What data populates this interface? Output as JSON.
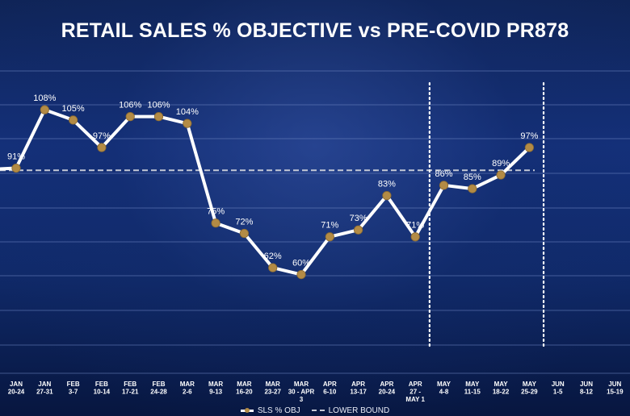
{
  "chart_data": {
    "type": "line",
    "title": "RETAIL SALES % OBJECTIVE vs PRE-COVID PR878",
    "categories": [
      [
        "JAN",
        "20-24"
      ],
      [
        "JAN",
        "27-31"
      ],
      [
        "FEB",
        "3-7"
      ],
      [
        "FEB",
        "10-14"
      ],
      [
        "FEB",
        "17-21"
      ],
      [
        "FEB",
        "24-28"
      ],
      [
        "MAR",
        "2-6"
      ],
      [
        "MAR",
        "9-13"
      ],
      [
        "MAR",
        "16-20"
      ],
      [
        "MAR",
        "23-27"
      ],
      [
        "MAR",
        "30 - APR",
        "3"
      ],
      [
        "APR",
        "6-10"
      ],
      [
        "APR",
        "13-17"
      ],
      [
        "APR",
        "20-24"
      ],
      [
        "APR",
        "27 -",
        "MAY 1"
      ],
      [
        "MAY",
        "4-8"
      ],
      [
        "MAY",
        "11-15"
      ],
      [
        "MAY",
        "18-22"
      ],
      [
        "MAY",
        "25-29"
      ],
      [
        "JUN",
        "1-5"
      ],
      [
        "JUN",
        "8-12"
      ],
      [
        "JUN",
        "15-19"
      ]
    ],
    "series": [
      {
        "name": "SLS % OBJ",
        "values": [
          91,
          108,
          105,
          97,
          106,
          106,
          104,
          75,
          72,
          62,
          60,
          71,
          73,
          83,
          71,
          86,
          85,
          89,
          97,
          null,
          null,
          null
        ],
        "labels": [
          "91%",
          "108%",
          "105%",
          "97%",
          "106%",
          "106%",
          "104%",
          "75%",
          "72%",
          "62%",
          "60%",
          "71%",
          "73%",
          "83%",
          "71%",
          "86%",
          "85%",
          "89%",
          "97%",
          "",
          "",
          ""
        ]
      }
    ],
    "reference_lines": [
      {
        "name": "LOWER BOUND",
        "value": 90,
        "style": "dashed"
      }
    ],
    "vertical_markers": [
      {
        "between": [
          "APR 27 - MAY 1",
          "MAY 4-8"
        ],
        "style": "dotted"
      },
      {
        "between": [
          "MAY 25-29",
          "JUN 1-5"
        ],
        "style": "dotted"
      }
    ],
    "grid": true,
    "legend_position": "bottom",
    "colors": {
      "line": "#ffffff",
      "marker": "#b38b45",
      "reference": "#c4c9d6",
      "grid": "#6f86c2",
      "text": "#ffffff"
    }
  },
  "legend": {
    "series_label": "SLS % OBJ",
    "reference_label": "LOWER BOUND"
  }
}
